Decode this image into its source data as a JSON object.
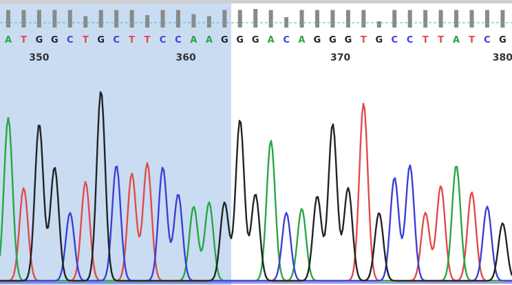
{
  "sequence": {
    "bases": [
      "A",
      "T",
      "G",
      "G",
      "C",
      "T",
      "G",
      "C",
      "T",
      "T",
      "C",
      "C",
      "A",
      "A",
      "G",
      "G",
      "G",
      "A",
      "C",
      "A",
      "G",
      "G",
      "G",
      "T",
      "G",
      "C",
      "C",
      "T",
      "T",
      "A",
      "T",
      "C",
      "G"
    ],
    "position_labels": [
      "350",
      "360",
      "370",
      "380"
    ],
    "selected_range_label": "",
    "quality_levels": [
      0.85,
      0.85,
      0.85,
      0.85,
      0.85,
      0.55,
      0.85,
      0.85,
      0.85,
      0.6,
      0.85,
      0.85,
      0.65,
      0.55,
      0.85,
      0.85,
      0.9,
      0.85,
      0.5,
      0.85,
      0.85,
      0.85,
      0.85,
      0.85,
      0.3,
      0.85,
      0.85,
      0.85,
      0.85,
      0.85,
      0.85,
      0.85,
      0.85
    ]
  },
  "peaks": [
    0.79,
    0.45,
    0.76,
    0.55,
    0.33,
    0.48,
    0.92,
    0.56,
    0.52,
    0.57,
    0.55,
    0.42,
    0.36,
    0.38,
    0.38,
    0.78,
    0.42,
    0.68,
    0.33,
    0.35,
    0.41,
    0.76,
    0.45,
    0.86,
    0.33,
    0.5,
    0.56,
    0.33,
    0.46,
    0.56,
    0.43,
    0.36,
    0.28
  ],
  "colors": {
    "A": "#27a644",
    "C": "#3a3fd6",
    "G": "#222222",
    "T": "#e24a4a",
    "selection": "#c9dcf2",
    "quality_bar": "#8a8a8a",
    "threshold": "#39b7d9"
  },
  "icons": {
    "quality_track": "quality-bar-icon"
  }
}
